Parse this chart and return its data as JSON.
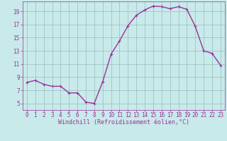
{
  "x": [
    0,
    1,
    2,
    3,
    4,
    5,
    6,
    7,
    8,
    9,
    10,
    11,
    12,
    13,
    14,
    15,
    16,
    17,
    18,
    19,
    20,
    21,
    22,
    23
  ],
  "y": [
    8.2,
    8.5,
    7.9,
    7.6,
    7.6,
    6.6,
    6.6,
    5.2,
    5.0,
    8.3,
    12.5,
    14.5,
    16.8,
    18.4,
    19.2,
    19.8,
    19.7,
    19.4,
    19.7,
    19.3,
    16.7,
    13.0,
    12.6,
    10.8
  ],
  "line_color": "#993399",
  "marker": "+",
  "background_color": "#c8eaea",
  "grid_color": "#99bbbb",
  "tick_color": "#993399",
  "label_color": "#993399",
  "xlabel": "Windchill (Refroidissement éolien,°C)",
  "xlim": [
    -0.5,
    23.5
  ],
  "ylim": [
    4.0,
    20.5
  ],
  "yticks": [
    5,
    7,
    9,
    11,
    13,
    15,
    17,
    19
  ],
  "xticks": [
    0,
    1,
    2,
    3,
    4,
    5,
    6,
    7,
    8,
    9,
    10,
    11,
    12,
    13,
    14,
    15,
    16,
    17,
    18,
    19,
    20,
    21,
    22,
    23
  ],
  "tick_fontsize": 5.5,
  "label_fontsize": 6.0,
  "line_width": 1.0,
  "marker_size": 3.5,
  "marker_edge_width": 0.8
}
